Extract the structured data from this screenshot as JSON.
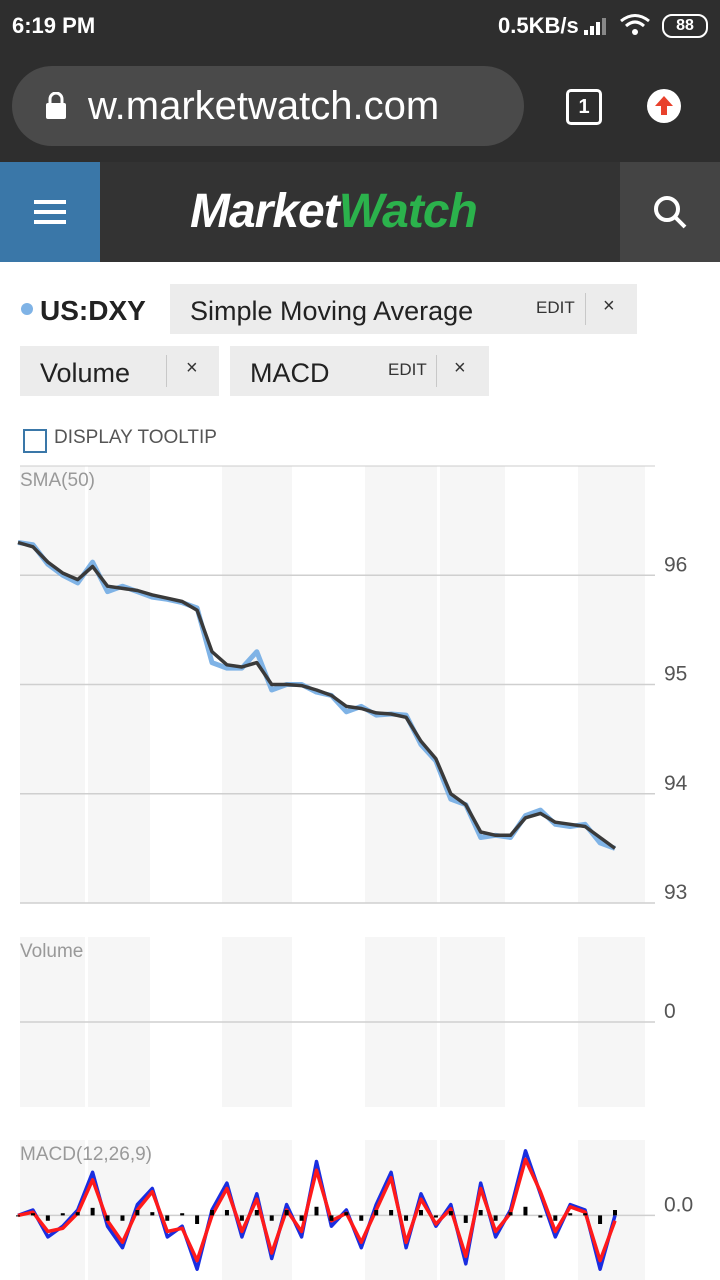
{
  "status_bar": {
    "time": "6:19 PM",
    "speed": "0.5KB/s",
    "battery": "88"
  },
  "browser": {
    "url": "w.marketwatch.com",
    "tabs": "1"
  },
  "header": {
    "logo_market": "Market",
    "logo_watch": "Watch"
  },
  "symbol": "US:DXY",
  "indicators": [
    {
      "label": "Simple Moving Average",
      "edit": "EDIT",
      "remove": "×"
    },
    {
      "label": "Volume",
      "remove": "×"
    },
    {
      "label": "MACD",
      "edit": "EDIT",
      "remove": "×"
    }
  ],
  "tooltip_label": "DISPLAY TOOLTIP",
  "chart_data": [
    {
      "type": "line",
      "title": "SMA(50)",
      "ylim": [
        93,
        97
      ],
      "yticks": [
        93,
        94,
        95,
        96
      ],
      "grid": true,
      "series": [
        {
          "name": "US:DXY",
          "color": "#7fb3e6",
          "values": [
            96.3,
            96.28,
            96.1,
            96.0,
            95.93,
            96.12,
            95.85,
            95.9,
            95.85,
            95.8,
            95.78,
            95.75,
            95.7,
            95.2,
            95.15,
            95.15,
            95.3,
            94.95,
            95.0,
            95.0,
            94.93,
            94.9,
            94.75,
            94.8,
            94.72,
            94.73,
            94.72,
            94.45,
            94.3,
            93.95,
            93.9,
            93.6,
            93.62,
            93.6,
            93.8,
            93.85,
            93.72,
            93.7,
            93.72,
            93.55,
            93.5
          ]
        },
        {
          "name": "SMA(50)",
          "color": "#3a3a3a",
          "values": [
            96.3,
            96.26,
            96.12,
            96.02,
            95.96,
            96.08,
            95.9,
            95.88,
            95.86,
            95.82,
            95.79,
            95.76,
            95.68,
            95.3,
            95.18,
            95.16,
            95.2,
            95.0,
            95.0,
            94.99,
            94.95,
            94.9,
            94.8,
            94.78,
            94.74,
            94.73,
            94.7,
            94.48,
            94.32,
            94.0,
            93.9,
            93.65,
            93.62,
            93.62,
            93.78,
            93.82,
            93.74,
            93.72,
            93.7,
            93.6,
            93.5
          ]
        }
      ]
    },
    {
      "type": "line",
      "title": "Volume",
      "ylim": [
        -1,
        1
      ],
      "yticks": [
        0
      ],
      "grid": true,
      "series": []
    },
    {
      "type": "line",
      "title": "MACD(12,26,9)",
      "ylim": [
        -0.6,
        0.7
      ],
      "yticks": [
        {
          "value": 0,
          "label": "0.0"
        }
      ],
      "grid": true,
      "series": [
        {
          "name": "MACD",
          "color": "#1a2ee0",
          "values": [
            0,
            0.05,
            -0.2,
            -0.1,
            0.05,
            0.4,
            -0.1,
            -0.3,
            0.1,
            0.25,
            -0.2,
            -0.1,
            -0.5,
            0.05,
            0.3,
            -0.2,
            0.2,
            -0.4,
            0.1,
            -0.2,
            0.5,
            -0.1,
            0.05,
            -0.3,
            0.1,
            0.4,
            -0.3,
            0.2,
            -0.1,
            0.1,
            -0.45,
            0.3,
            -0.2,
            0.05,
            0.6,
            0.2,
            -0.2,
            0.1,
            0.05,
            -0.5,
            0.0
          ]
        },
        {
          "name": "Signal",
          "color": "#ff1a1a",
          "values": [
            0,
            0.03,
            -0.15,
            -0.12,
            0.02,
            0.33,
            -0.05,
            -0.25,
            0.05,
            0.22,
            -0.15,
            -0.12,
            -0.42,
            0.0,
            0.25,
            -0.15,
            0.15,
            -0.35,
            0.05,
            -0.15,
            0.42,
            -0.05,
            0.02,
            -0.25,
            0.05,
            0.35,
            -0.25,
            0.15,
            -0.08,
            0.06,
            -0.38,
            0.25,
            -0.15,
            0.02,
            0.52,
            0.22,
            -0.15,
            0.08,
            0.03,
            -0.42,
            -0.05
          ]
        },
        {
          "name": "Histogram",
          "type": "bar",
          "color": "#000000",
          "values": [
            0,
            0.02,
            -0.05,
            0.02,
            0.03,
            0.07,
            -0.05,
            -0.05,
            0.05,
            0.03,
            -0.05,
            0.02,
            -0.08,
            0.05,
            0.05,
            -0.05,
            0.05,
            -0.05,
            0.05,
            -0.05,
            0.08,
            -0.05,
            0.03,
            -0.05,
            0.05,
            0.05,
            -0.05,
            0.05,
            -0.02,
            0.04,
            -0.07,
            0.05,
            -0.05,
            0.03,
            0.08,
            -0.02,
            -0.05,
            0.02,
            0.02,
            -0.08,
            0.05
          ]
        }
      ]
    }
  ]
}
